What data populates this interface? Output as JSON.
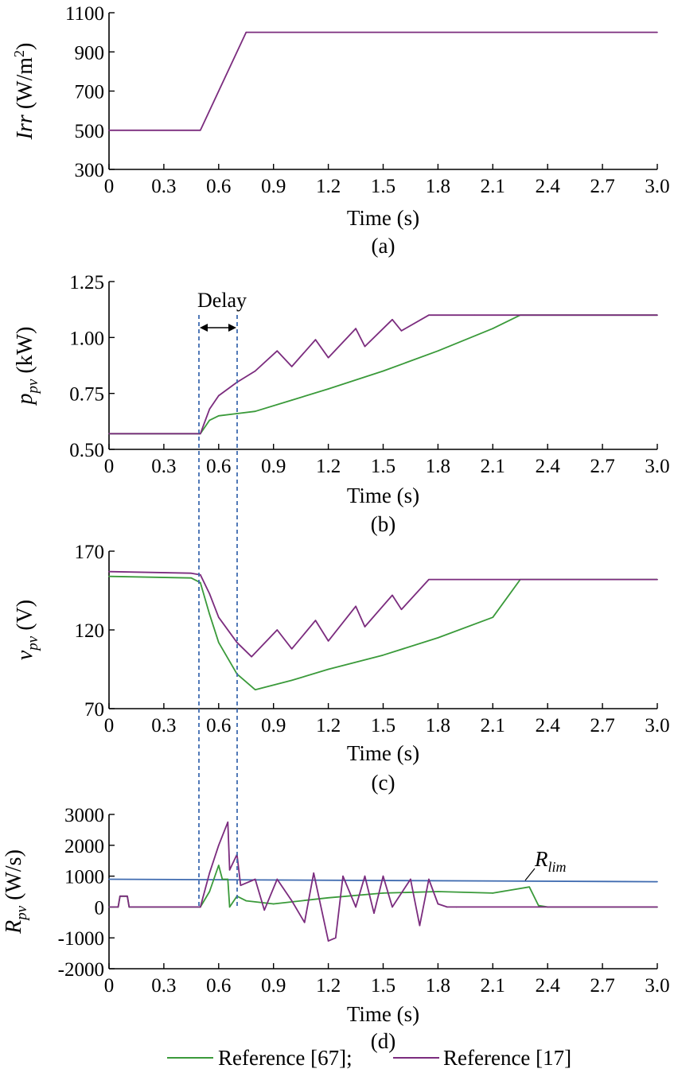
{
  "colors": {
    "green": "#3a9a3a",
    "purple": "#7b2c7e",
    "blue": "#3f6bb0",
    "dashed": "#3f6bb0"
  },
  "legend": [
    {
      "label": "Reference [67];",
      "color": "#3a9a3a"
    },
    {
      "label": "Reference [17]",
      "color": "#7b2c7e"
    }
  ],
  "annotations": {
    "delay": "Delay",
    "rlim_main": "R",
    "rlim_sub": "lim"
  },
  "chart_data": [
    {
      "type": "line",
      "caption": "(a)",
      "xlabel": "Time (s)",
      "ylabel": {
        "main": "Irr",
        "unit": " (W/m",
        "sup": "2",
        "close": ")"
      },
      "xlim": [
        0,
        3.0
      ],
      "ylim": [
        300,
        1100
      ],
      "xticks": [
        "0",
        "0.3",
        "0.6",
        "0.9",
        "1.2",
        "1.5",
        "1.8",
        "2.1",
        "2.4",
        "2.7",
        "3.0"
      ],
      "yticks": [
        "300",
        "500",
        "700",
        "900",
        "1100"
      ],
      "series": [
        {
          "name": "Reference [17]",
          "x": [
            0,
            0.5,
            0.75,
            3.0
          ],
          "y": [
            500,
            500,
            1000,
            1000
          ]
        }
      ]
    },
    {
      "type": "line",
      "caption": "(b)",
      "xlabel": "Time (s)",
      "ylabel": {
        "main": "p",
        "sub": "pv",
        "unit": " (kW)"
      },
      "xlim": [
        0,
        3.0
      ],
      "ylim": [
        0.5,
        1.25
      ],
      "xticks": [
        "0",
        "0.3",
        "0.6",
        "0.9",
        "1.2",
        "1.5",
        "1.8",
        "2.1",
        "2.4",
        "2.7",
        "3.0"
      ],
      "yticks": [
        "0.50",
        "0.75",
        "1.00",
        "1.25"
      ],
      "series": [
        {
          "name": "Reference [67]",
          "x": [
            0,
            0.5,
            0.55,
            0.6,
            0.7,
            0.8,
            1.0,
            1.2,
            1.5,
            1.8,
            2.1,
            2.25,
            2.5,
            3.0
          ],
          "y": [
            0.57,
            0.57,
            0.63,
            0.65,
            0.66,
            0.67,
            0.72,
            0.77,
            0.85,
            0.94,
            1.04,
            1.1,
            1.1,
            1.1
          ]
        },
        {
          "name": "Reference [17]",
          "x": [
            0,
            0.5,
            0.55,
            0.6,
            0.7,
            0.8,
            0.92,
            1.0,
            1.13,
            1.2,
            1.35,
            1.4,
            1.55,
            1.6,
            1.75,
            2.0,
            3.0
          ],
          "y": [
            0.57,
            0.57,
            0.68,
            0.74,
            0.8,
            0.85,
            0.94,
            0.87,
            0.99,
            0.91,
            1.04,
            0.96,
            1.08,
            1.03,
            1.1,
            1.1,
            1.1
          ]
        }
      ]
    },
    {
      "type": "line",
      "caption": "(c)",
      "xlabel": "Time (s)",
      "ylabel": {
        "main": "v",
        "sub": "pv",
        "unit": " (V)"
      },
      "xlim": [
        0,
        3.0
      ],
      "ylim": [
        70,
        170
      ],
      "xticks": [
        "0",
        "0.3",
        "0.6",
        "0.9",
        "1.2",
        "1.5",
        "1.8",
        "2.1",
        "2.4",
        "2.7",
        "3.0"
      ],
      "yticks": [
        "70",
        "120",
        "170"
      ],
      "series": [
        {
          "name": "Reference [67]",
          "x": [
            0,
            0.45,
            0.5,
            0.55,
            0.6,
            0.7,
            0.8,
            1.0,
            1.2,
            1.5,
            1.8,
            2.1,
            2.25,
            2.5,
            3.0
          ],
          "y": [
            154,
            153,
            150,
            130,
            112,
            92,
            82,
            88,
            95,
            104,
            115,
            128,
            152,
            152,
            152
          ]
        },
        {
          "name": "Reference [17]",
          "x": [
            0,
            0.45,
            0.5,
            0.55,
            0.6,
            0.7,
            0.78,
            0.92,
            1.0,
            1.13,
            1.2,
            1.35,
            1.4,
            1.55,
            1.6,
            1.75,
            2.0,
            3.0
          ],
          "y": [
            157,
            156,
            155,
            143,
            128,
            112,
            103,
            120,
            108,
            126,
            113,
            135,
            122,
            142,
            133,
            152,
            152,
            152
          ]
        }
      ]
    },
    {
      "type": "line",
      "caption": "(d)",
      "xlabel": "Time (s)",
      "ylabel": {
        "main": "R",
        "sub": "pv",
        "unit": " (W/s)"
      },
      "xlim": [
        0,
        3.0
      ],
      "ylim": [
        -2000,
        3000
      ],
      "xticks": [
        "0",
        "0.3",
        "0.6",
        "0.9",
        "1.2",
        "1.5",
        "1.8",
        "2.1",
        "2.4",
        "2.7",
        "3.0"
      ],
      "yticks": [
        "-2000",
        "-1000",
        "0",
        "1000",
        "2000",
        "3000"
      ],
      "series": [
        {
          "name": "R_lim",
          "x": [
            0,
            3.0
          ],
          "y": [
            900,
            820
          ]
        },
        {
          "name": "Reference [67]",
          "x": [
            0,
            0.05,
            0.06,
            0.1,
            0.11,
            0.5,
            0.55,
            0.6,
            0.62,
            0.65,
            0.66,
            0.7,
            0.75,
            0.9,
            1.2,
            1.5,
            1.8,
            2.1,
            2.3,
            2.35,
            2.4,
            3.0
          ],
          "y": [
            0,
            0,
            350,
            350,
            0,
            0,
            500,
            1350,
            900,
            900,
            0,
            350,
            200,
            100,
            300,
            450,
            500,
            450,
            650,
            50,
            0,
            0
          ]
        },
        {
          "name": "Reference [17]",
          "x": [
            0,
            0.05,
            0.06,
            0.1,
            0.11,
            0.5,
            0.55,
            0.6,
            0.65,
            0.66,
            0.7,
            0.72,
            0.8,
            0.85,
            0.92,
            1.0,
            1.07,
            1.12,
            1.2,
            1.24,
            1.28,
            1.35,
            1.4,
            1.45,
            1.5,
            1.55,
            1.65,
            1.7,
            1.75,
            1.8,
            1.85,
            1.9,
            3.0
          ],
          "y": [
            0,
            0,
            350,
            350,
            0,
            0,
            1100,
            2000,
            2750,
            1200,
            1700,
            700,
            900,
            -100,
            900,
            200,
            -500,
            1100,
            -1100,
            -1000,
            1000,
            0,
            1000,
            -200,
            1000,
            0,
            900,
            -600,
            900,
            100,
            0,
            0,
            0
          ]
        }
      ]
    }
  ]
}
